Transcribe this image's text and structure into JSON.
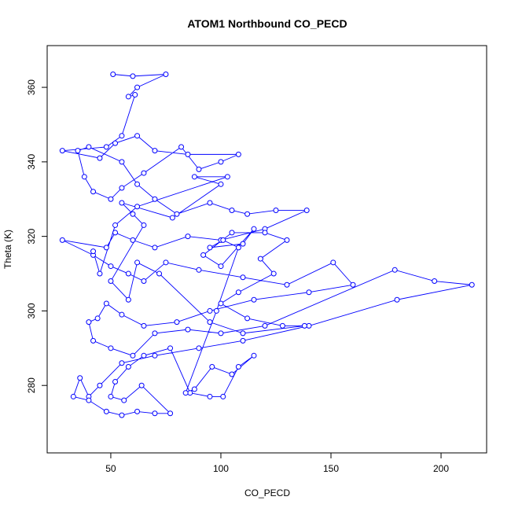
{
  "chart_data": {
    "type": "scatter-line",
    "title": "ATOM1 Northbound CO_PECD",
    "x_label": "CO_PECD",
    "y_label": "Theta (K)",
    "xlim": [
      21.1,
      220.7
    ],
    "ylim": [
      261.9,
      371.2
    ],
    "xticks": [
      50,
      100,
      150,
      200
    ],
    "yticks": [
      280,
      300,
      320,
      340,
      360
    ],
    "series": [
      {
        "color": "#0000ff",
        "x": [
          51,
          60,
          75,
          62,
          58,
          61,
          55,
          48,
          28,
          45,
          52,
          62,
          70,
          85,
          108,
          100,
          90,
          82,
          65,
          55,
          50,
          42,
          38,
          35,
          40,
          55,
          62,
          70,
          80,
          95,
          105,
          112,
          125,
          139,
          120,
          100,
          85,
          70,
          60,
          52,
          48,
          28,
          42,
          50,
          58,
          65,
          75,
          90,
          110,
          130,
          151,
          160,
          140,
          115,
          95,
          80,
          65,
          55,
          48,
          44,
          40,
          42,
          50,
          60,
          70,
          85,
          100,
          120,
          179,
          197,
          214,
          180,
          140,
          110,
          90,
          70,
          55,
          45,
          40,
          36,
          33,
          40,
          48,
          55,
          62,
          70,
          77,
          64,
          56,
          50,
          52,
          58,
          65,
          77,
          86,
          95,
          101,
          108,
          115,
          105,
          96,
          88,
          84,
          98,
          108,
          101,
          95,
          110,
          115,
          100,
          92,
          105,
          120,
          130,
          118,
          124,
          108,
          100,
          112,
          128,
          138,
          110,
          95,
          72,
          62,
          58,
          50,
          65,
          60,
          55,
          78,
          100,
          88,
          103,
          62,
          52,
          45,
          42
        ],
        "values": [
          363.5,
          363,
          363.5,
          360,
          357.5,
          358,
          347,
          344,
          343,
          341,
          345,
          347,
          343,
          342,
          342,
          340,
          338,
          344,
          337,
          333,
          330,
          332,
          336,
          343,
          344,
          340,
          334,
          330,
          326,
          329,
          327,
          326,
          327,
          327,
          322,
          319,
          320,
          317,
          319,
          321,
          317,
          319,
          315,
          312,
          310,
          308,
          313,
          311,
          309,
          307,
          313,
          307,
          305,
          303,
          300,
          297,
          296,
          299,
          302,
          298,
          297,
          292,
          290,
          288,
          294,
          295,
          294,
          296,
          311,
          308,
          307,
          303,
          296,
          292,
          290,
          288,
          286,
          280,
          277,
          282,
          277,
          276,
          273,
          272,
          273,
          272.5,
          272.5,
          280,
          276,
          277,
          281,
          285,
          288,
          290,
          278,
          277,
          277,
          285,
          288,
          283,
          285,
          279,
          278,
          300,
          317,
          319,
          317,
          318,
          322,
          312,
          315,
          321,
          321,
          319,
          314,
          310,
          305,
          302,
          298,
          296,
          296,
          294,
          297,
          310,
          313,
          303,
          308,
          323,
          326,
          329,
          325,
          334,
          336,
          336,
          328,
          323,
          310,
          316
        ]
      }
    ]
  }
}
